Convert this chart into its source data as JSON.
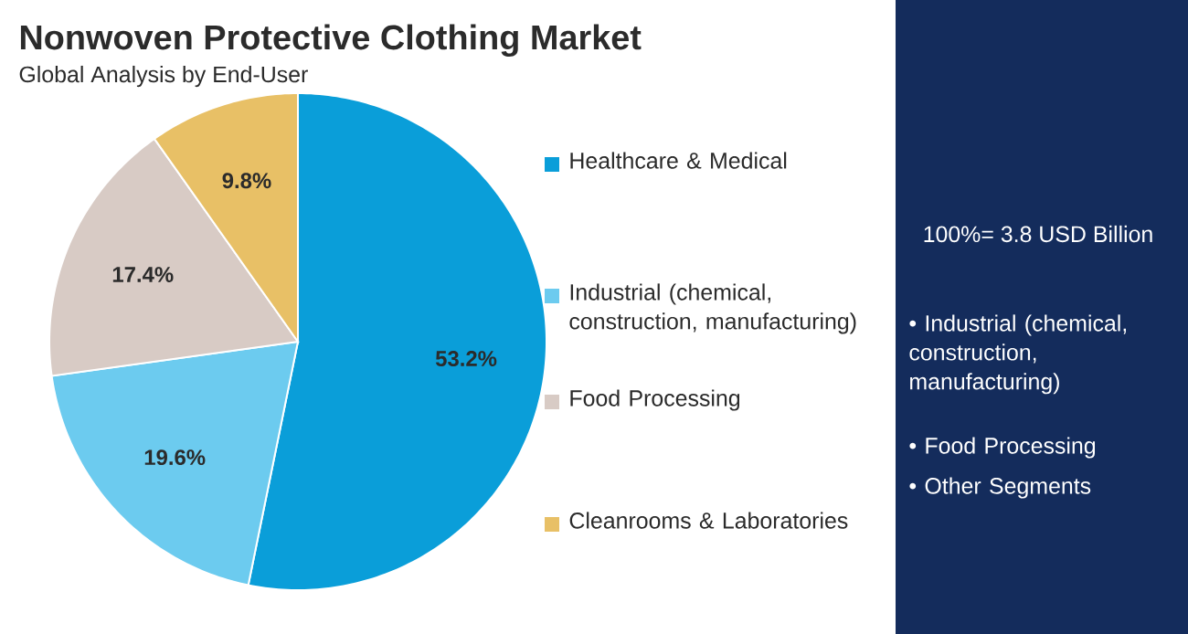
{
  "chart_data": {
    "type": "pie",
    "title": "Nonwoven Protective Clothing Market",
    "subtitle": "Global Analysis by End-User",
    "categories": [
      "Healthcare & Medical",
      "Industrial (chemical, construction, manufacturing)",
      "Food Processing",
      "Cleanrooms & Laboratories"
    ],
    "values": [
      53.2,
      19.6,
      17.4,
      9.8
    ],
    "value_labels": [
      "53.2%",
      "19.6%",
      "17.4%",
      "9.8%"
    ],
    "colors": [
      "#0a9ed9",
      "#6ccbef",
      "#d8cbc5",
      "#e8c066"
    ],
    "legend": "right",
    "annotations": [
      "100%= 3.8 USD Billion",
      "• Industrial (chemical, construction, manufacturing)",
      "• Food Processing",
      "• Other Segments"
    ]
  }
}
